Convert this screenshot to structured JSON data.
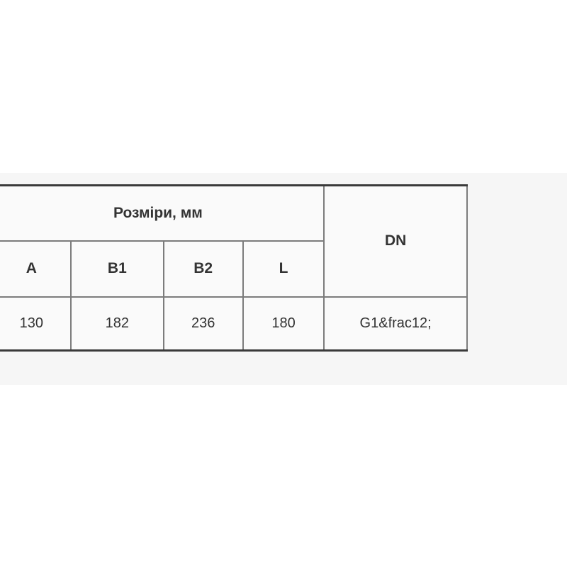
{
  "page": {
    "background": "#ffffff",
    "band_background": "#f6f6f6"
  },
  "table": {
    "group_header": "Розміри, мм",
    "dn_header": "DN",
    "columns": [
      "A",
      "B1",
      "B2",
      "L"
    ],
    "values": {
      "a": "130",
      "b1": "182",
      "b2": "236",
      "l": "180",
      "dn": "G1&frac12;"
    },
    "colors": {
      "heavy_border": "#3a3a3a",
      "grid_border": "#7c7c7c",
      "cell_background": "#fafafa",
      "text": "#333333"
    }
  }
}
